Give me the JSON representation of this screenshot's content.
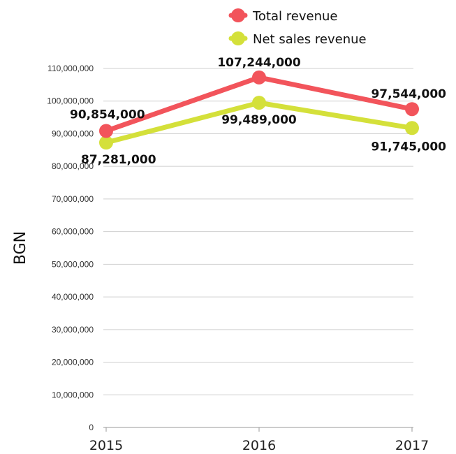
{
  "chart_data": {
    "type": "line",
    "categories": [
      "2015",
      "2016",
      "2017"
    ],
    "series": [
      {
        "name": "Total revenue",
        "color": "#f2545b",
        "values": [
          90854000,
          107244000,
          97544000
        ],
        "labels": [
          "90,854,000",
          "107,244,000",
          "97,544,000"
        ]
      },
      {
        "name": "Net sales revenue",
        "color": "#d4e03a",
        "values": [
          87281000,
          99489000,
          91745000
        ],
        "labels": [
          "87,281,000",
          "99,489,000",
          "91,745,000"
        ]
      }
    ],
    "ylabel": "BGN",
    "xlabel": "",
    "ylim": [
      0,
      110000000
    ],
    "yticks": [
      0,
      10000000,
      20000000,
      30000000,
      40000000,
      50000000,
      60000000,
      70000000,
      80000000,
      90000000,
      100000000,
      110000000
    ],
    "ytick_labels": [
      "0",
      "10,000,000",
      "20,000,000",
      "30,000,000",
      "40,000,000",
      "50,000,000",
      "60,000,000",
      "70,000,000",
      "80,000,000",
      "90,000,000",
      "100,000,000",
      "110,000,000"
    ],
    "grid": true,
    "legend_position": "top"
  }
}
